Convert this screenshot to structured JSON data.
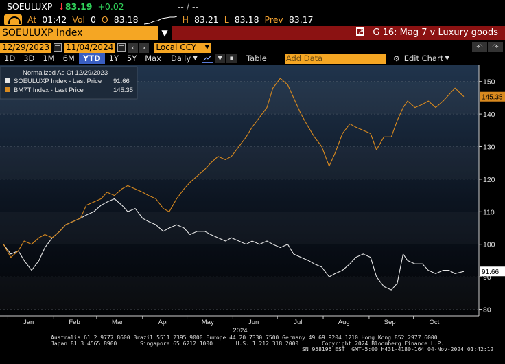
{
  "header": {
    "ticker": "SOEULUXP",
    "last_price": "83.19",
    "change": "+0.02",
    "time_label": "At",
    "time": "01:42",
    "vol_label": "Vol",
    "vol": "0",
    "open_label": "O",
    "open": "83.18",
    "high_label": "H",
    "high": "83.21",
    "low_label": "L",
    "low": "83.18",
    "prev_label": "Prev",
    "prev": "83.17",
    "bid_ask": "-- / --"
  },
  "titlebar": {
    "security": "SOEULUXP Index",
    "chart_title": "G 16: Mag 7 v Luxury goods"
  },
  "controls": {
    "start_date": "12/29/2023",
    "end_date": "11/04/2024",
    "currency": "Local CCY",
    "ranges": [
      "1D",
      "3D",
      "1M",
      "6M",
      "YTD",
      "1Y",
      "5Y",
      "Max"
    ],
    "active_range": "YTD",
    "frequency": "Daily",
    "table_label": "Table",
    "add_data_placeholder": "Add Data",
    "edit_chart_label": "Edit Chart"
  },
  "footer": {
    "line1": "Australia 61 2 9777 8600 Brazil 5511 2395 9000 Europe 44 20 7330 7500 Germany 49 69 9204 1210 Hong Kong 852 2977 6000",
    "line2": "Japan 81 3 4565 8900       Singapore 65 6212 1000       U.S. 1 212 318 2000       Copyright 2024 Bloomberg Finance L.P.",
    "line3": "SN 958196 EST  GMT-5:00 H431-4180-164 04-Nov-2024 01:42:12"
  },
  "colors": {
    "accent_orange": "#f5a623",
    "title_red": "#8b1212",
    "positive_green": "#31d55b",
    "series_orange": "#d98a1f",
    "series_white": "#e6e6e6",
    "active_blue": "#3a5fc2"
  },
  "chart_data": {
    "type": "line",
    "legend_header": "Normalized As Of 12/29/2023",
    "legend_position": "top-left",
    "ylim": [
      78,
      155
    ],
    "yticks": [
      80,
      90,
      100,
      110,
      120,
      130,
      140,
      150
    ],
    "x_month_labels": [
      "Jan",
      "Feb",
      "Mar",
      "Apr",
      "May",
      "Jun",
      "Jul",
      "Aug",
      "Sep",
      "Oct"
    ],
    "x_year_label": "2024",
    "x_range": [
      "2023-12-29",
      "2024-11-04"
    ],
    "series": [
      {
        "name": "SOEULUXP Index - Last Price",
        "last_value": "91.66",
        "color": "#e6e6e6",
        "points": [
          [
            "2023-12-29",
            100
          ],
          [
            "2024-01-03",
            97
          ],
          [
            "2024-01-08",
            98
          ],
          [
            "2024-01-12",
            95
          ],
          [
            "2024-01-17",
            92
          ],
          [
            "2024-01-22",
            95
          ],
          [
            "2024-01-26",
            99
          ],
          [
            "2024-01-31",
            102
          ],
          [
            "2024-02-05",
            104
          ],
          [
            "2024-02-09",
            106
          ],
          [
            "2024-02-14",
            107
          ],
          [
            "2024-02-19",
            108
          ],
          [
            "2024-02-23",
            109
          ],
          [
            "2024-02-28",
            110
          ],
          [
            "2024-03-04",
            112
          ],
          [
            "2024-03-08",
            113
          ],
          [
            "2024-03-13",
            114
          ],
          [
            "2024-03-18",
            112
          ],
          [
            "2024-03-22",
            110
          ],
          [
            "2024-03-27",
            111
          ],
          [
            "2024-04-01",
            108
          ],
          [
            "2024-04-05",
            107
          ],
          [
            "2024-04-10",
            106
          ],
          [
            "2024-04-15",
            104
          ],
          [
            "2024-04-19",
            105
          ],
          [
            "2024-04-24",
            106
          ],
          [
            "2024-04-29",
            105
          ],
          [
            "2024-05-03",
            103
          ],
          [
            "2024-05-08",
            104
          ],
          [
            "2024-05-13",
            104
          ],
          [
            "2024-05-17",
            103
          ],
          [
            "2024-05-22",
            102
          ],
          [
            "2024-05-27",
            101
          ],
          [
            "2024-05-31",
            102
          ],
          [
            "2024-06-05",
            101
          ],
          [
            "2024-06-10",
            100
          ],
          [
            "2024-06-14",
            101
          ],
          [
            "2024-06-19",
            100
          ],
          [
            "2024-06-24",
            101
          ],
          [
            "2024-06-28",
            100
          ],
          [
            "2024-07-03",
            99
          ],
          [
            "2024-07-08",
            100
          ],
          [
            "2024-07-12",
            97
          ],
          [
            "2024-07-17",
            96
          ],
          [
            "2024-07-22",
            95
          ],
          [
            "2024-07-26",
            94
          ],
          [
            "2024-07-31",
            93
          ],
          [
            "2024-08-05",
            90
          ],
          [
            "2024-08-09",
            91
          ],
          [
            "2024-08-14",
            92
          ],
          [
            "2024-08-19",
            94
          ],
          [
            "2024-08-23",
            96
          ],
          [
            "2024-08-28",
            97
          ],
          [
            "2024-09-02",
            96
          ],
          [
            "2024-09-06",
            90
          ],
          [
            "2024-09-11",
            87
          ],
          [
            "2024-09-16",
            86
          ],
          [
            "2024-09-20",
            88
          ],
          [
            "2024-09-24",
            97
          ],
          [
            "2024-09-27",
            95
          ],
          [
            "2024-10-02",
            94
          ],
          [
            "2024-10-07",
            94
          ],
          [
            "2024-10-11",
            92
          ],
          [
            "2024-10-16",
            91
          ],
          [
            "2024-10-21",
            92
          ],
          [
            "2024-10-25",
            92
          ],
          [
            "2024-10-29",
            91
          ],
          [
            "2024-11-04",
            91.66
          ]
        ]
      },
      {
        "name": "BM7T Index - Last Price",
        "last_value": "145.35",
        "color": "#d98a1f",
        "points": [
          [
            "2023-12-29",
            100
          ],
          [
            "2024-01-03",
            96
          ],
          [
            "2024-01-08",
            98
          ],
          [
            "2024-01-12",
            101
          ],
          [
            "2024-01-17",
            100
          ],
          [
            "2024-01-22",
            102
          ],
          [
            "2024-01-26",
            103
          ],
          [
            "2024-01-31",
            102
          ],
          [
            "2024-02-05",
            104
          ],
          [
            "2024-02-09",
            106
          ],
          [
            "2024-02-14",
            107
          ],
          [
            "2024-02-19",
            108
          ],
          [
            "2024-02-23",
            112
          ],
          [
            "2024-02-28",
            113
          ],
          [
            "2024-03-04",
            114
          ],
          [
            "2024-03-08",
            116
          ],
          [
            "2024-03-13",
            115
          ],
          [
            "2024-03-18",
            117
          ],
          [
            "2024-03-22",
            118
          ],
          [
            "2024-03-27",
            117
          ],
          [
            "2024-04-01",
            116
          ],
          [
            "2024-04-05",
            115
          ],
          [
            "2024-04-10",
            114
          ],
          [
            "2024-04-15",
            111
          ],
          [
            "2024-04-19",
            110
          ],
          [
            "2024-04-24",
            114
          ],
          [
            "2024-04-29",
            117
          ],
          [
            "2024-05-03",
            119
          ],
          [
            "2024-05-08",
            121
          ],
          [
            "2024-05-13",
            123
          ],
          [
            "2024-05-17",
            125
          ],
          [
            "2024-05-22",
            127
          ],
          [
            "2024-05-27",
            126
          ],
          [
            "2024-05-31",
            127
          ],
          [
            "2024-06-05",
            130
          ],
          [
            "2024-06-10",
            133
          ],
          [
            "2024-06-14",
            136
          ],
          [
            "2024-06-19",
            139
          ],
          [
            "2024-06-24",
            142
          ],
          [
            "2024-06-28",
            148
          ],
          [
            "2024-07-03",
            151
          ],
          [
            "2024-07-08",
            149
          ],
          [
            "2024-07-12",
            145
          ],
          [
            "2024-07-17",
            140
          ],
          [
            "2024-07-22",
            136
          ],
          [
            "2024-07-26",
            133
          ],
          [
            "2024-07-31",
            130
          ],
          [
            "2024-08-05",
            124
          ],
          [
            "2024-08-09",
            128
          ],
          [
            "2024-08-14",
            134
          ],
          [
            "2024-08-19",
            137
          ],
          [
            "2024-08-23",
            136
          ],
          [
            "2024-08-28",
            135
          ],
          [
            "2024-09-02",
            134
          ],
          [
            "2024-09-06",
            129
          ],
          [
            "2024-09-11",
            133
          ],
          [
            "2024-09-16",
            133
          ],
          [
            "2024-09-20",
            138
          ],
          [
            "2024-09-24",
            142
          ],
          [
            "2024-09-27",
            144
          ],
          [
            "2024-10-02",
            142
          ],
          [
            "2024-10-07",
            143
          ],
          [
            "2024-10-11",
            144
          ],
          [
            "2024-10-16",
            142
          ],
          [
            "2024-10-21",
            144
          ],
          [
            "2024-10-25",
            146
          ],
          [
            "2024-10-29",
            148
          ],
          [
            "2024-11-04",
            145.35
          ]
        ]
      }
    ]
  }
}
